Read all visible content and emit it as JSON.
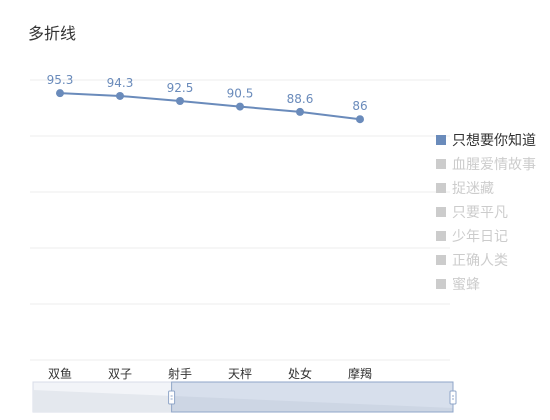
{
  "chart_data": {
    "type": "line",
    "title": "多折线",
    "categories": [
      "双鱼",
      "双子",
      "射手",
      "天枰",
      "处女",
      "摩羯"
    ],
    "series": [
      {
        "name": "只想要你知道",
        "values": [
          95.3,
          94.3,
          92.5,
          90.5,
          88.6,
          86
        ],
        "active": true,
        "color": "#6a8bbb"
      },
      {
        "name": "血腥爱情故事",
        "active": false,
        "color": "#cccccc"
      },
      {
        "name": "捉迷藏",
        "active": false,
        "color": "#cccccc"
      },
      {
        "name": "只要平凡",
        "active": false,
        "color": "#cccccc"
      },
      {
        "name": "少年日记",
        "active": false,
        "color": "#cccccc"
      },
      {
        "name": "正确人类",
        "active": false,
        "color": "#cccccc"
      },
      {
        "name": "蜜蜂",
        "active": false,
        "color": "#cccccc"
      }
    ],
    "ylim": [
      0,
      100
    ],
    "grid": true,
    "legend_position": "right",
    "data_labels": true,
    "data_zoom": {
      "start": 0.33,
      "end": 1.0
    }
  }
}
